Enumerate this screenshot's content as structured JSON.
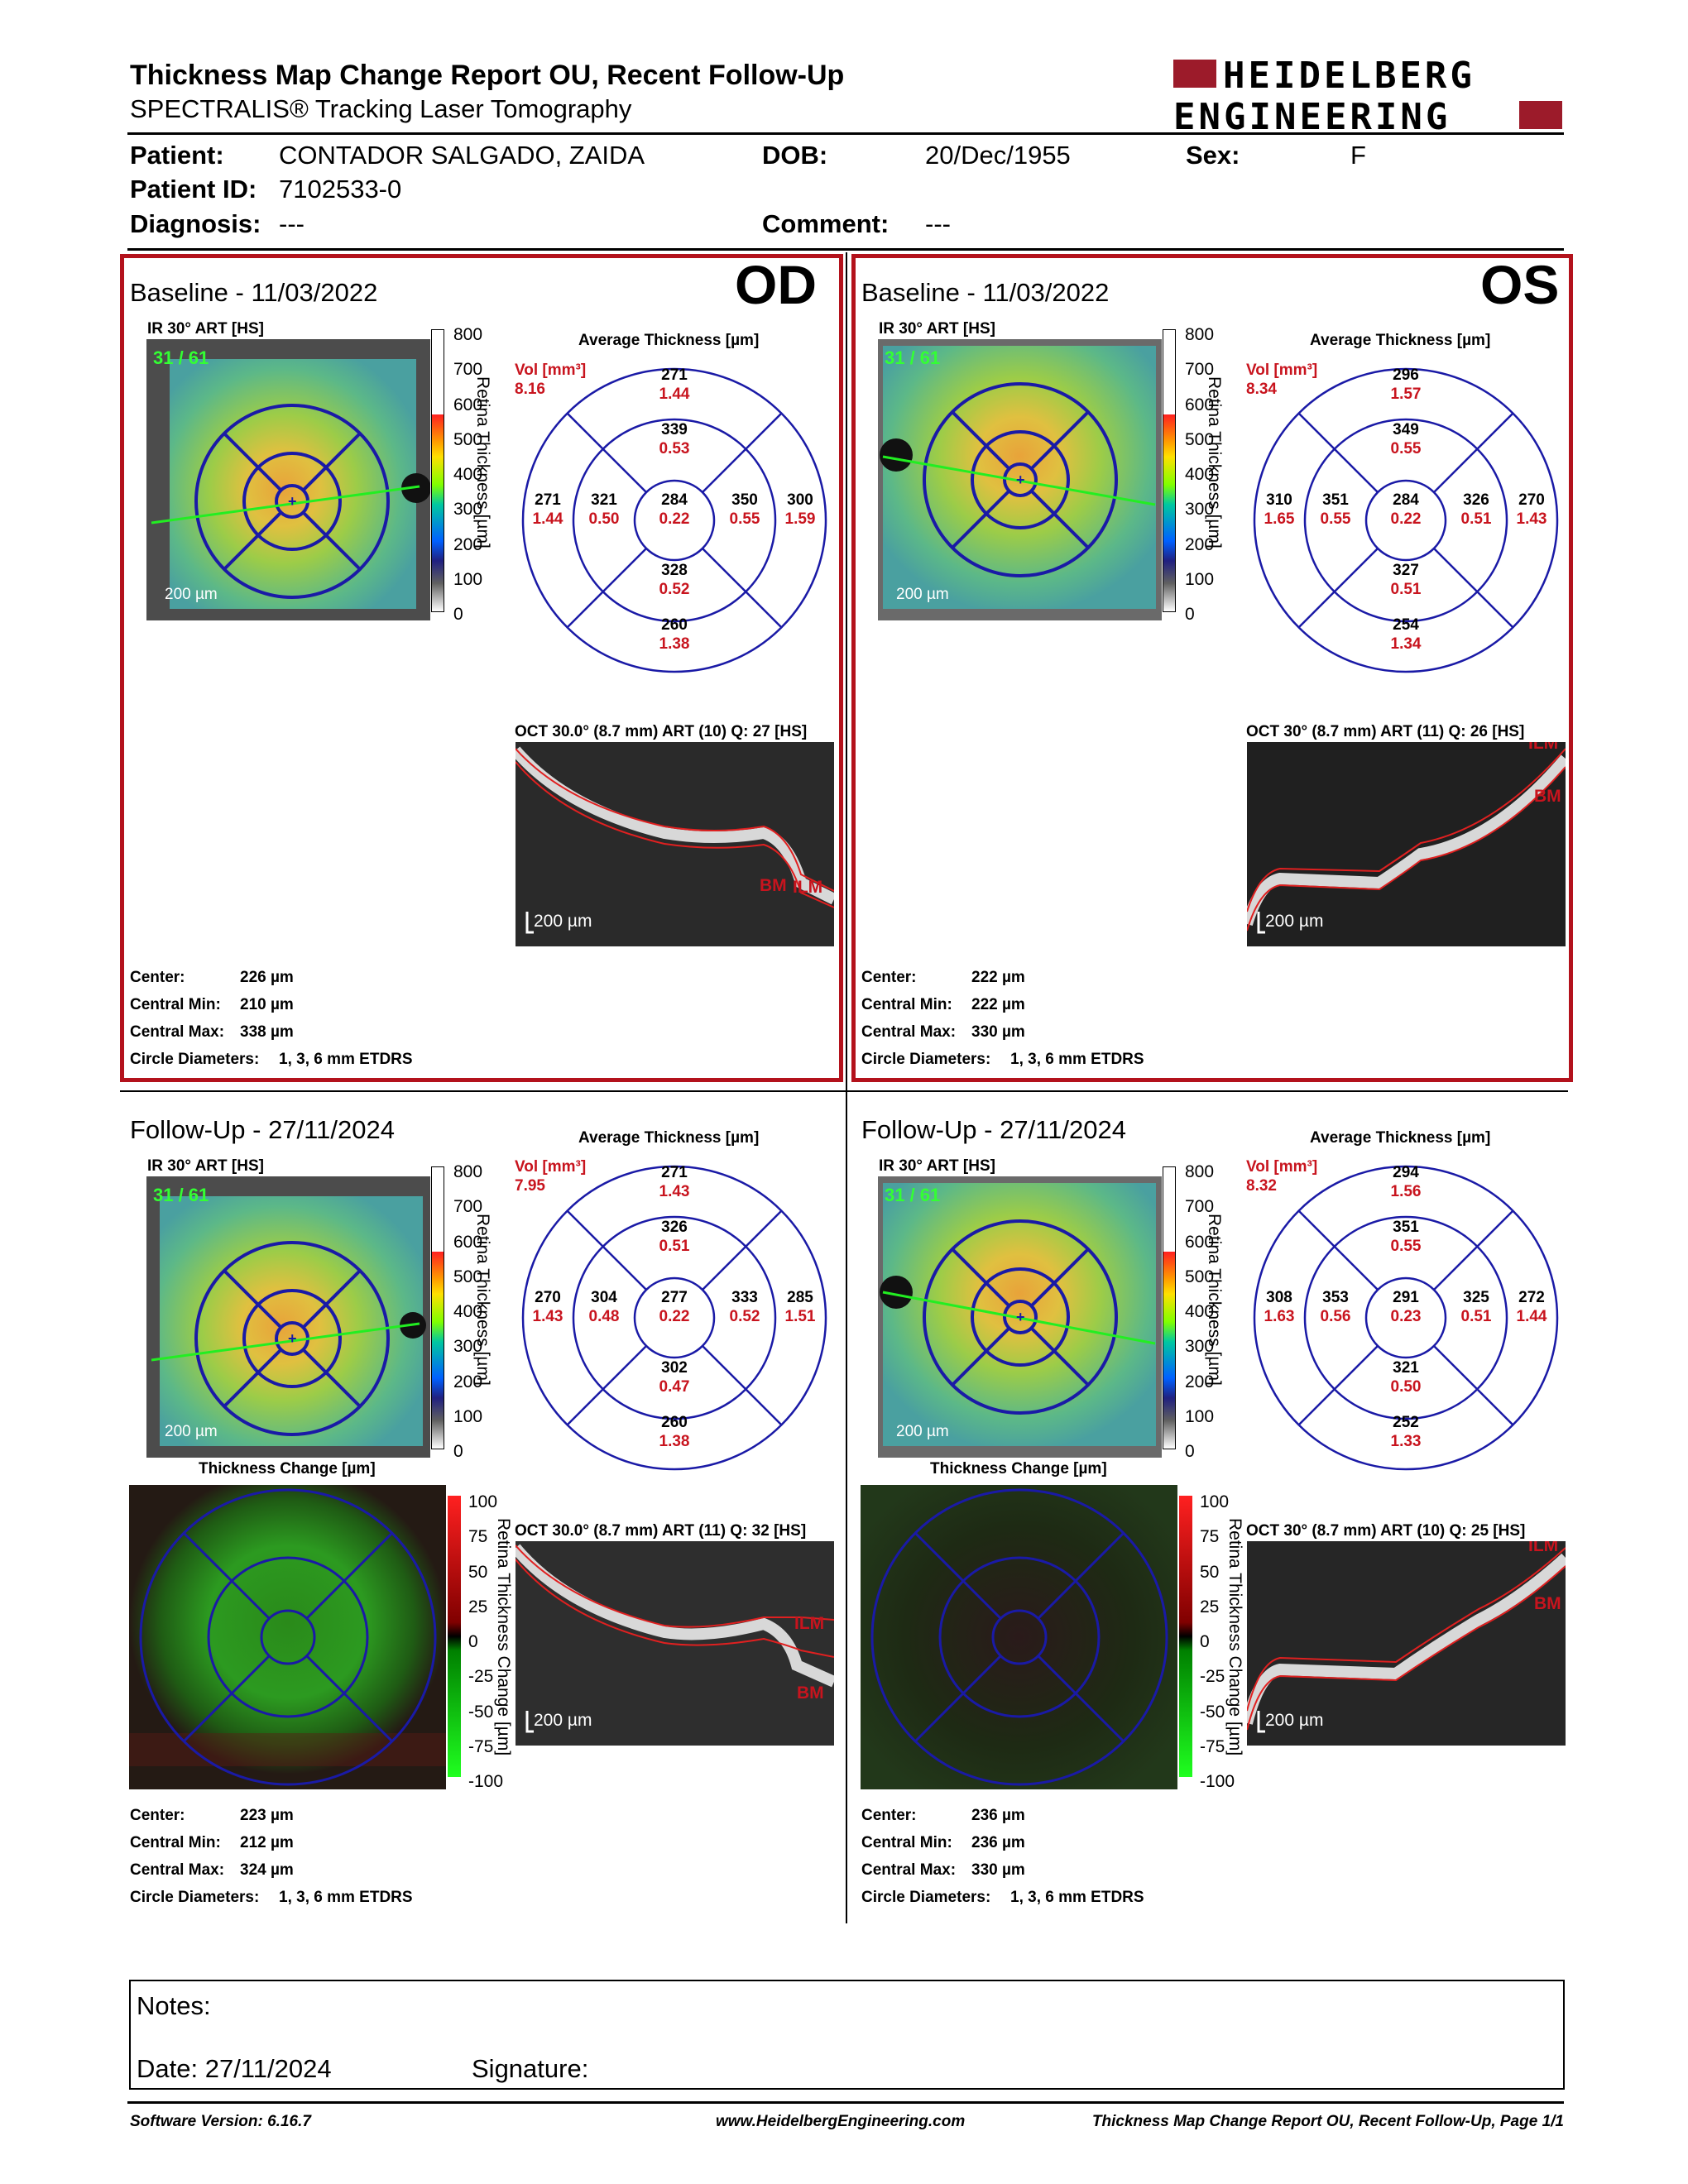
{
  "header": {
    "title": "Thickness Map Change Report OU, Recent Follow-Up",
    "subtitle": "SPECTRALIS® Tracking Laser Tomography",
    "logo_line1": "HEIDELBERG",
    "logo_line2": "ENGINEERING"
  },
  "patient": {
    "patient_label": "Patient:",
    "patient_value": "CONTADOR SALGADO, ZAIDA",
    "dob_label": "DOB:",
    "dob_value": "20/Dec/1955",
    "sex_label": "Sex:",
    "sex_value": "F",
    "id_label": "Patient ID:",
    "id_value": "7102533-0",
    "diagnosis_label": "Diagnosis:",
    "diagnosis_value": "---",
    "comment_label": "Comment:",
    "comment_value": "---"
  },
  "labels": {
    "avg_thickness": "Average Thickness [µm]",
    "vol": "Vol [mm³]",
    "scale_200": "200 µm",
    "thickness_change": "Thickness Change [µm]",
    "retina_thickness_axis": "Retina Thickness [µm]",
    "retina_change_axis": "Retina Thickness Change [µm]",
    "center": "Center:",
    "central_min": "Central Min:",
    "central_max": "Central Max:",
    "circle_diam": "Circle Diameters:",
    "ilm": "ILM",
    "bm": "BM"
  },
  "thickness_scale": [
    "800",
    "700",
    "600",
    "500",
    "400",
    "300",
    "200",
    "100",
    "0"
  ],
  "change_scale": [
    "100",
    "75",
    "50",
    "25",
    "0",
    "-25",
    "-50",
    "-75",
    "-100"
  ],
  "panels": {
    "od_baseline": {
      "title": "Baseline - 11/03/2022",
      "eye": "OD",
      "ir_label": "IR 30° ART [HS]",
      "frames": "31 / 61",
      "oct_label": "OCT 30.0° (8.7 mm) ART (10) Q: 27 [HS]",
      "vol": "8.16",
      "grid": {
        "outer_top": {
          "t": "271",
          "v": "1.44"
        },
        "inner_top": {
          "t": "339",
          "v": "0.53"
        },
        "outer_left": {
          "t": "271",
          "v": "1.44"
        },
        "inner_left": {
          "t": "321",
          "v": "0.50"
        },
        "center": {
          "t": "284",
          "v": "0.22"
        },
        "inner_right": {
          "t": "350",
          "v": "0.55"
        },
        "outer_right": {
          "t": "300",
          "v": "1.59"
        },
        "inner_bottom": {
          "t": "328",
          "v": "0.52"
        },
        "outer_bottom": {
          "t": "260",
          "v": "1.38"
        }
      },
      "stats": {
        "center": "226 µm",
        "min": "210 µm",
        "max": "338 µm",
        "diam": "1, 3, 6 mm ETDRS"
      }
    },
    "os_baseline": {
      "title": "Baseline - 11/03/2022",
      "eye": "OS",
      "ir_label": "IR 30° ART [HS]",
      "frames": "31 / 61",
      "oct_label": "OCT 30° (8.7 mm) ART (11) Q: 26 [HS]",
      "vol": "8.34",
      "grid": {
        "outer_top": {
          "t": "296",
          "v": "1.57"
        },
        "inner_top": {
          "t": "349",
          "v": "0.55"
        },
        "outer_left": {
          "t": "310",
          "v": "1.65"
        },
        "inner_left": {
          "t": "351",
          "v": "0.55"
        },
        "center": {
          "t": "284",
          "v": "0.22"
        },
        "inner_right": {
          "t": "326",
          "v": "0.51"
        },
        "outer_right": {
          "t": "270",
          "v": "1.43"
        },
        "inner_bottom": {
          "t": "327",
          "v": "0.51"
        },
        "outer_bottom": {
          "t": "254",
          "v": "1.34"
        }
      },
      "stats": {
        "center": "222 µm",
        "min": "222 µm",
        "max": "330 µm",
        "diam": "1, 3, 6 mm ETDRS"
      }
    },
    "od_followup": {
      "title": "Follow-Up - 27/11/2024",
      "ir_label": "IR 30° ART [HS]",
      "frames": "31 / 61",
      "oct_label": "OCT 30.0° (8.7 mm) ART (11) Q: 32 [HS]",
      "vol": "7.95",
      "grid": {
        "outer_top": {
          "t": "271",
          "v": "1.43"
        },
        "inner_top": {
          "t": "326",
          "v": "0.51"
        },
        "outer_left": {
          "t": "270",
          "v": "1.43"
        },
        "inner_left": {
          "t": "304",
          "v": "0.48"
        },
        "center": {
          "t": "277",
          "v": "0.22"
        },
        "inner_right": {
          "t": "333",
          "v": "0.52"
        },
        "outer_right": {
          "t": "285",
          "v": "1.51"
        },
        "inner_bottom": {
          "t": "302",
          "v": "0.47"
        },
        "outer_bottom": {
          "t": "260",
          "v": "1.38"
        }
      },
      "stats": {
        "center": "223 µm",
        "min": "212 µm",
        "max": "324 µm",
        "diam": "1, 3, 6 mm ETDRS"
      }
    },
    "os_followup": {
      "title": "Follow-Up - 27/11/2024",
      "ir_label": "IR 30° ART [HS]",
      "frames": "31 / 61",
      "oct_label": "OCT 30° (8.7 mm) ART (10) Q: 25 [HS]",
      "vol": "8.32",
      "grid": {
        "outer_top": {
          "t": "294",
          "v": "1.56"
        },
        "inner_top": {
          "t": "351",
          "v": "0.55"
        },
        "outer_left": {
          "t": "308",
          "v": "1.63"
        },
        "inner_left": {
          "t": "353",
          "v": "0.56"
        },
        "center": {
          "t": "291",
          "v": "0.23"
        },
        "inner_right": {
          "t": "325",
          "v": "0.51"
        },
        "outer_right": {
          "t": "272",
          "v": "1.44"
        },
        "inner_bottom": {
          "t": "321",
          "v": "0.50"
        },
        "outer_bottom": {
          "t": "252",
          "v": "1.33"
        }
      },
      "stats": {
        "center": "236 µm",
        "min": "236 µm",
        "max": "330 µm",
        "diam": "1, 3, 6 mm ETDRS"
      }
    }
  },
  "notes": {
    "notes_label": "Notes:",
    "date_label": "Date: 27/11/2024",
    "signature_label": "Signature:"
  },
  "footer": {
    "software": "Software Version: 6.16.7",
    "website": "www.HeidelbergEngineering.com",
    "page": "Thickness Map Change Report OU, Recent Follow-Up, Page 1/1"
  },
  "colors": {
    "frame_red": "#b3121c",
    "logo_red": "#9c1b2a",
    "grid_blue": "#1a1aa6",
    "value_red": "#c8141e"
  }
}
